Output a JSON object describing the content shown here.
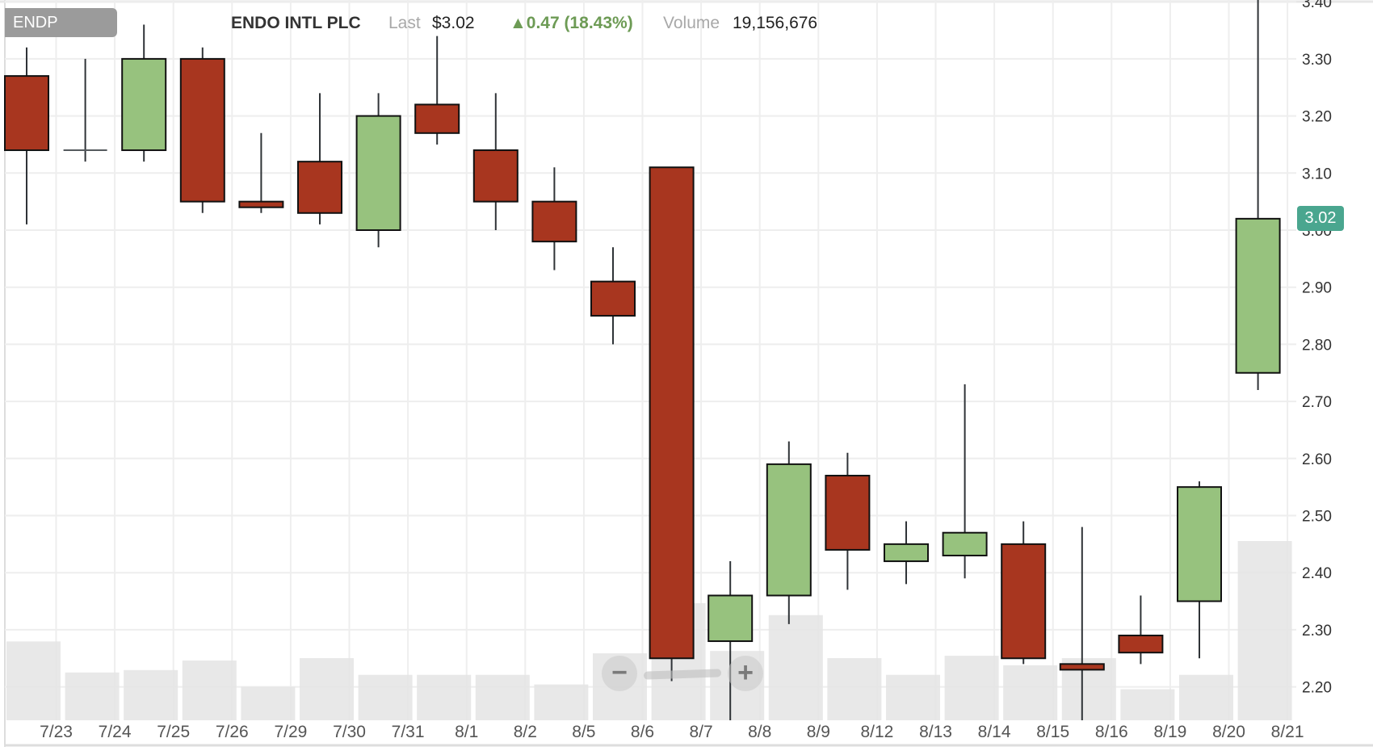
{
  "header": {
    "symbol": "ENDP",
    "company": "ENDO INTL PLC",
    "last_label": "Last",
    "last_value": "$3.02",
    "change": "▲0.47 (18.43%)",
    "volume_label": "Volume",
    "volume_value": "19,156,676"
  },
  "price_badge": "3.02",
  "zoom_control": {
    "minus": "−",
    "plus": "+"
  },
  "colors": {
    "up": "#97c27e",
    "down": "#a8361f",
    "wick": "#2f3337",
    "grid": "#eeeeee",
    "volume": "#e4e4e4",
    "badge": "#4aa68f",
    "change": "#6d9b55"
  },
  "chart_data": {
    "type": "candlestick",
    "title": "ENDO INTL PLC (ENDP)",
    "xlabel": "",
    "ylabel": "",
    "ylim": [
      2.14,
      3.41
    ],
    "y_ticks": [
      "3.40",
      "3.30",
      "3.20",
      "3.10",
      "3.00",
      "2.90",
      "2.80",
      "2.70",
      "2.60",
      "2.50",
      "2.40",
      "2.30",
      "2.20"
    ],
    "y_tick_values": [
      3.4,
      3.3,
      3.2,
      3.1,
      3.0,
      2.9,
      2.8,
      2.7,
      2.6,
      2.5,
      2.4,
      2.3,
      2.2
    ],
    "x_labels": [
      "7/23",
      "7/24",
      "7/25",
      "7/26",
      "7/29",
      "7/30",
      "7/31",
      "8/1",
      "8/2",
      "8/5",
      "8/6",
      "8/7",
      "8/8",
      "8/9",
      "8/12",
      "8/13",
      "8/14",
      "8/15",
      "8/16",
      "8/19",
      "8/20",
      "8/21"
    ],
    "grid": true,
    "last_price": 3.02,
    "candles": [
      {
        "o": 3.27,
        "h": 3.32,
        "l": 3.01,
        "c": 3.14
      },
      {
        "o": 3.14,
        "h": 3.3,
        "l": 3.12,
        "c": 3.14
      },
      {
        "o": 3.14,
        "h": 3.36,
        "l": 3.12,
        "c": 3.3
      },
      {
        "o": 3.3,
        "h": 3.32,
        "l": 3.03,
        "c": 3.05
      },
      {
        "o": 3.05,
        "h": 3.17,
        "l": 3.03,
        "c": 3.04
      },
      {
        "o": 3.12,
        "h": 3.24,
        "l": 3.01,
        "c": 3.03
      },
      {
        "o": 3.0,
        "h": 3.24,
        "l": 2.97,
        "c": 3.2
      },
      {
        "o": 3.22,
        "h": 3.34,
        "l": 3.15,
        "c": 3.17
      },
      {
        "o": 3.14,
        "h": 3.24,
        "l": 3.0,
        "c": 3.05
      },
      {
        "o": 3.05,
        "h": 3.11,
        "l": 2.93,
        "c": 2.98
      },
      {
        "o": 2.91,
        "h": 2.97,
        "l": 2.8,
        "c": 2.85
      },
      {
        "o": 3.11,
        "h": 3.11,
        "l": 2.21,
        "c": 2.25
      },
      {
        "o": 2.28,
        "h": 2.42,
        "l": 2.14,
        "c": 2.36
      },
      {
        "o": 2.36,
        "h": 2.63,
        "l": 2.31,
        "c": 2.59
      },
      {
        "o": 2.57,
        "h": 2.61,
        "l": 2.37,
        "c": 2.44
      },
      {
        "o": 2.42,
        "h": 2.49,
        "l": 2.38,
        "c": 2.45
      },
      {
        "o": 2.43,
        "h": 2.73,
        "l": 2.39,
        "c": 2.47
      },
      {
        "o": 2.45,
        "h": 2.49,
        "l": 2.24,
        "c": 2.25
      },
      {
        "o": 2.24,
        "h": 2.48,
        "l": 2.14,
        "c": 2.23
      },
      {
        "o": 2.29,
        "h": 2.36,
        "l": 2.24,
        "c": 2.26
      },
      {
        "o": 2.35,
        "h": 2.56,
        "l": 2.25,
        "c": 2.55
      },
      {
        "o": 2.75,
        "h": 3.41,
        "l": 2.72,
        "c": 3.02
      }
    ],
    "volume_relative": [
      0.33,
      0.2,
      0.21,
      0.25,
      0.14,
      0.26,
      0.19,
      0.19,
      0.19,
      0.15,
      0.28,
      0.49,
      0.29,
      0.44,
      0.26,
      0.19,
      0.27,
      0.23,
      0.26,
      0.13,
      0.19,
      0.75
    ]
  }
}
